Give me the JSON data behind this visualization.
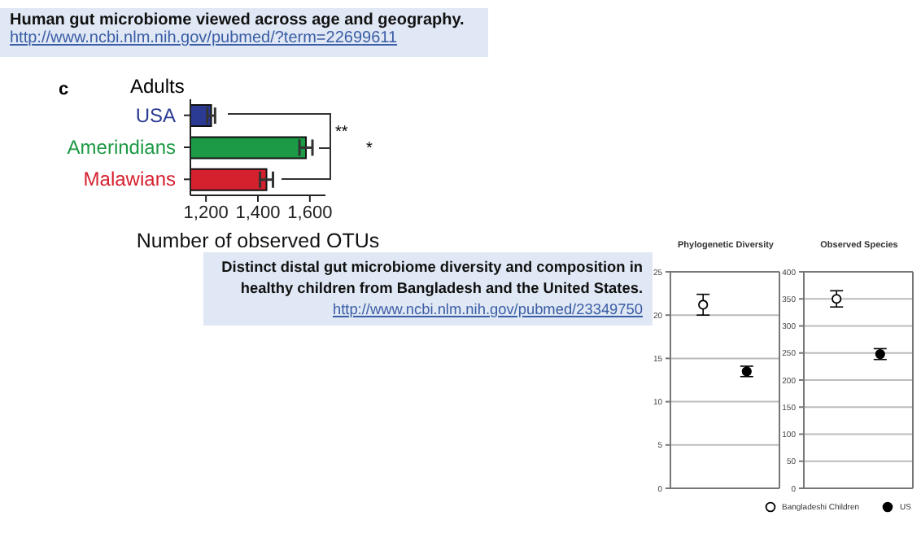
{
  "chart_data": [
    {
      "type": "bar",
      "orientation": "horizontal",
      "title": "Adults",
      "xlabel": "Number of observed OTUs",
      "categories": [
        "USA",
        "Amerindians",
        "Malawians"
      ],
      "values": [
        1220,
        1585,
        1433
      ],
      "errors": [
        15,
        25,
        25
      ],
      "colors": [
        "#2b3a93",
        "#1c9a45",
        "#d5202e"
      ],
      "xlim": [
        1140,
        1660
      ],
      "xticks": [
        {
          "value": 1200,
          "label": "1,200"
        },
        {
          "value": 1400,
          "label": "1,400"
        },
        {
          "value": 1600,
          "label": "1,600"
        }
      ],
      "grid": false,
      "annotations": [
        "Human gut microbiome viewed across age and geography.",
        "http://www.ncbi.nlm.nih.gov/pubmed/?term=22699611",
        "c",
        "**",
        "*"
      ]
    },
    {
      "type": "scatter",
      "title": "Phylogenetic Diversity",
      "categories": [
        null,
        null
      ],
      "series": [
        {
          "color": "#ffffff",
          "values": [
            21.2,
            null
          ],
          "errors": [
            1.2,
            null
          ]
        },
        {
          "color": "#000000",
          "values": [
            null,
            13.5
          ],
          "errors": [
            null,
            0.6
          ]
        }
      ],
      "marker": "circle",
      "ylim": [
        0,
        25
      ],
      "yticks": [
        0,
        5,
        10,
        15,
        20,
        25
      ],
      "grid": "y",
      "annotations": [
        "Distinct distal gut microbiome diversity and composition in healthy children from Bangladesh and the United States.",
        "http://www.ncbi.nlm.nih.gov/pubmed/23349750"
      ]
    },
    {
      "type": "scatter",
      "title": "Observed Species",
      "categories": [
        null,
        null
      ],
      "series": [
        {
          "name": "Bangladeshi Children",
          "color": "#ffffff",
          "values": [
            350,
            null
          ],
          "errors": [
            15,
            null
          ]
        },
        {
          "name": "US",
          "color": "#000000",
          "values": [
            null,
            248
          ],
          "errors": [
            null,
            10
          ]
        }
      ],
      "marker": "circle",
      "ylim": [
        0,
        400
      ],
      "yticks": [
        0,
        50,
        100,
        150,
        200,
        250,
        300,
        350,
        400
      ],
      "grid": "y",
      "legend": "bottom"
    }
  ]
}
